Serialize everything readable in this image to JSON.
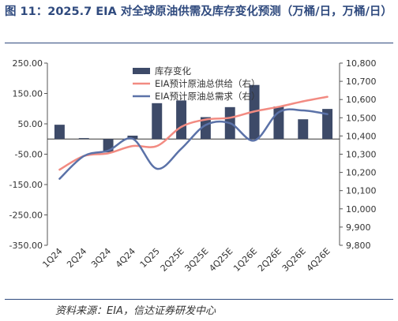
{
  "title": "图 11：2025.7 EIA 对全球原油供需及库存变化预测（万桶/日，万桶/日）",
  "source": "资料来源：EIA，信达证券研发中心",
  "colors": {
    "title": "#2f4a7e",
    "bar": "#3d4a68",
    "supply": "#f28b82",
    "demand": "#5b72a8"
  },
  "chart_data": {
    "type": "bar+line",
    "categories": [
      "1Q24",
      "2Q24",
      "3Q24",
      "4Q24",
      "1Q25",
      "2Q25E",
      "3Q25E",
      "4Q25E",
      "1Q26E",
      "2Q26E",
      "3Q26E",
      "4Q26E"
    ],
    "left_axis": {
      "ylim": [
        -350,
        250
      ],
      "ticks": [
        250,
        150,
        50,
        -50,
        -150,
        -250,
        -350
      ],
      "tick_labels": [
        "250.00",
        "150.00",
        "50.00",
        "-50.00",
        "-150.00",
        "-250.00",
        "-350.00"
      ]
    },
    "right_axis": {
      "ylim": [
        9800,
        10800
      ],
      "ticks": [
        10800,
        10700,
        10600,
        10500,
        10400,
        10300,
        10200,
        10100,
        10000,
        9900,
        9800
      ],
      "tick_labels": [
        "10,800",
        "10,700",
        "10,600",
        "10,500",
        "10,400",
        "10,300",
        "10,200",
        "10,100",
        "10,000",
        "9,900",
        "9,800"
      ]
    },
    "grid": false,
    "legend_position": "top-center",
    "series": [
      {
        "name": "库存变化",
        "type": "bar",
        "axis": "left",
        "values": [
          47,
          3,
          -44,
          11,
          118,
          127,
          72,
          105,
          178,
          107,
          65,
          99
        ]
      },
      {
        "name": "EIA预计原油总供给（右）",
        "type": "line",
        "axis": "right",
        "values": [
          10215,
          10290,
          10305,
          10345,
          10345,
          10450,
          10490,
          10500,
          10535,
          10560,
          10590,
          10615
        ]
      },
      {
        "name": "EIA预计原油总需求（右）",
        "type": "line",
        "axis": "right",
        "values": [
          10165,
          10290,
          10320,
          10385,
          10220,
          10330,
          10460,
          10470,
          10375,
          10530,
          10540,
          10520
        ]
      }
    ]
  }
}
